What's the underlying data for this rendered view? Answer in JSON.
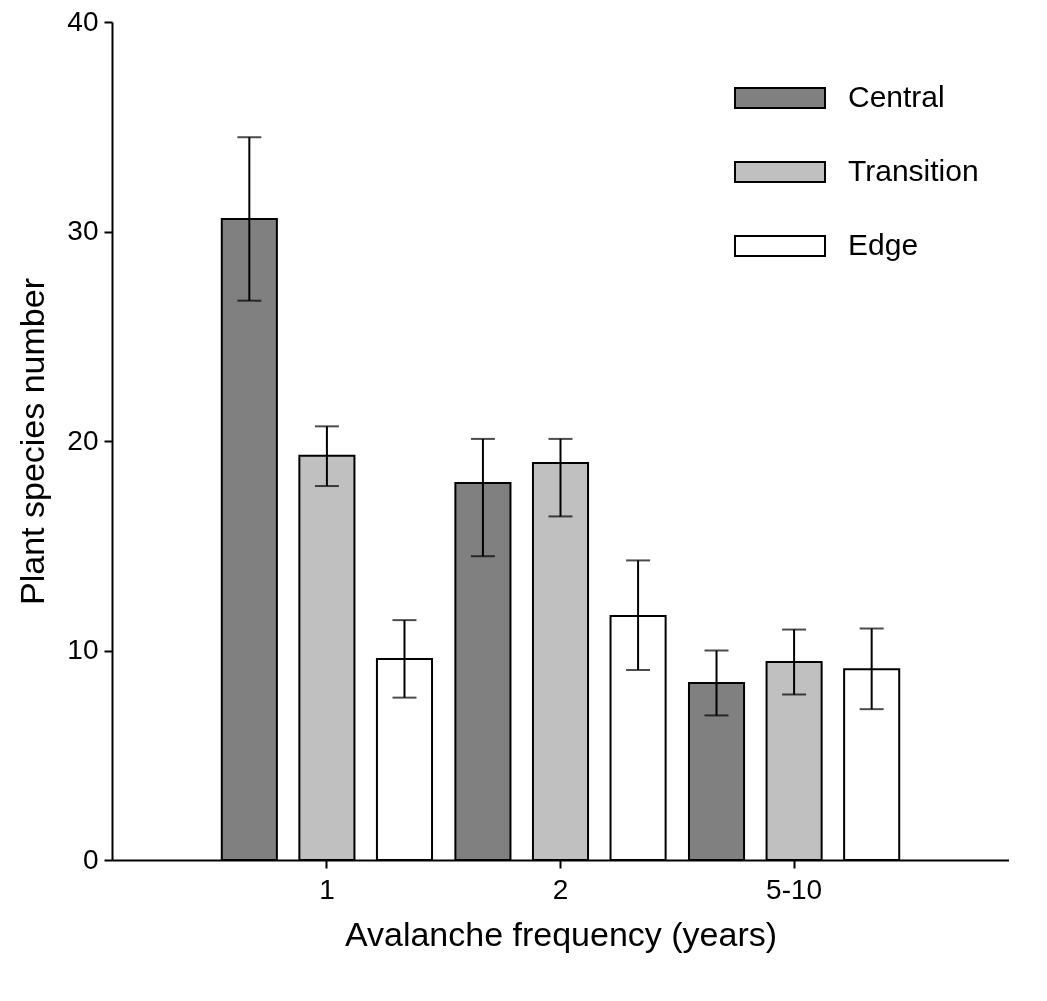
{
  "chart_data": {
    "type": "bar",
    "xlabel": "Avalanche frequency (years)",
    "ylabel": "Plant species number",
    "categories": [
      "1",
      "2",
      "5-10"
    ],
    "series": [
      {
        "name": "Central",
        "color": "#808080",
        "values": [
          30.6,
          18.0,
          8.45
        ],
        "errors": [
          [
            26.7,
            34.5
          ],
          [
            14.5,
            20.1
          ],
          [
            6.9,
            10.0
          ]
        ]
      },
      {
        "name": "Transition",
        "color": "#c0c0c0",
        "values": [
          19.3,
          18.95,
          9.45
        ],
        "errors": [
          [
            17.85,
            20.7
          ],
          [
            16.4,
            20.1
          ],
          [
            7.9,
            11.0
          ]
        ]
      },
      {
        "name": "Edge",
        "color": "#ffffff",
        "values": [
          9.6,
          11.65,
          9.1
        ],
        "errors": [
          [
            7.75,
            11.45
          ],
          [
            9.07,
            14.3
          ],
          [
            7.2,
            11.05
          ]
        ]
      }
    ],
    "ylim": [
      0,
      40
    ],
    "yticks": [
      0,
      10,
      20,
      30,
      40
    ],
    "legend": "top right",
    "grid": false
  }
}
